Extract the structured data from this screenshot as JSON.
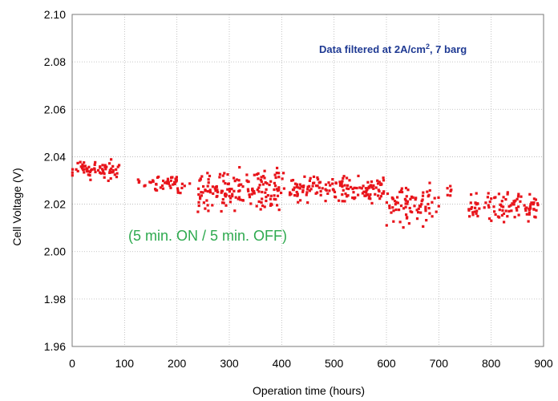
{
  "chart_data": {
    "type": "scatter",
    "xlabel": "Operation time (hours)",
    "ylabel": "Cell Voltage (V)",
    "xlim": [
      0,
      900
    ],
    "ylim": [
      1.96,
      2.1
    ],
    "xticks": [
      "0",
      "100",
      "200",
      "300",
      "400",
      "500",
      "600",
      "700",
      "800",
      "900"
    ],
    "yticks": [
      "2.10",
      "2.08",
      "2.06",
      "2.04",
      "2.02",
      "2.00",
      "1.98",
      "1.96"
    ],
    "grid": true,
    "marker_color": "#e8141b",
    "annotations": [
      {
        "text_main": "Data filtered at 2A/cm",
        "sup": "2",
        "text_tail": ", 7 barg",
        "color": "#1f3a93"
      },
      {
        "text": "(5 min. ON / 5 min. OFF)",
        "color": "#2eaa4f"
      }
    ],
    "segments": [
      {
        "x_start": 0,
        "x_end": 90,
        "y_min": 2.029,
        "y_max": 2.04,
        "n": 70
      },
      {
        "x_start": 120,
        "x_end": 140,
        "y_min": 2.027,
        "y_max": 2.031,
        "n": 5
      },
      {
        "x_start": 148,
        "x_end": 200,
        "y_min": 2.025,
        "y_max": 2.033,
        "n": 40
      },
      {
        "x_start": 200,
        "x_end": 225,
        "y_min": 2.024,
        "y_max": 2.03,
        "n": 8
      },
      {
        "x_start": 240,
        "x_end": 405,
        "y_min": 2.016,
        "y_max": 2.036,
        "n": 170
      },
      {
        "x_start": 415,
        "x_end": 600,
        "y_min": 2.02,
        "y_max": 2.033,
        "n": 150
      },
      {
        "x_start": 600,
        "x_end": 700,
        "y_min": 2.009,
        "y_max": 2.03,
        "n": 80
      },
      {
        "x_start": 715,
        "x_end": 725,
        "y_min": 2.023,
        "y_max": 2.029,
        "n": 6
      },
      {
        "x_start": 755,
        "x_end": 890,
        "y_min": 2.012,
        "y_max": 2.026,
        "n": 100
      }
    ]
  }
}
